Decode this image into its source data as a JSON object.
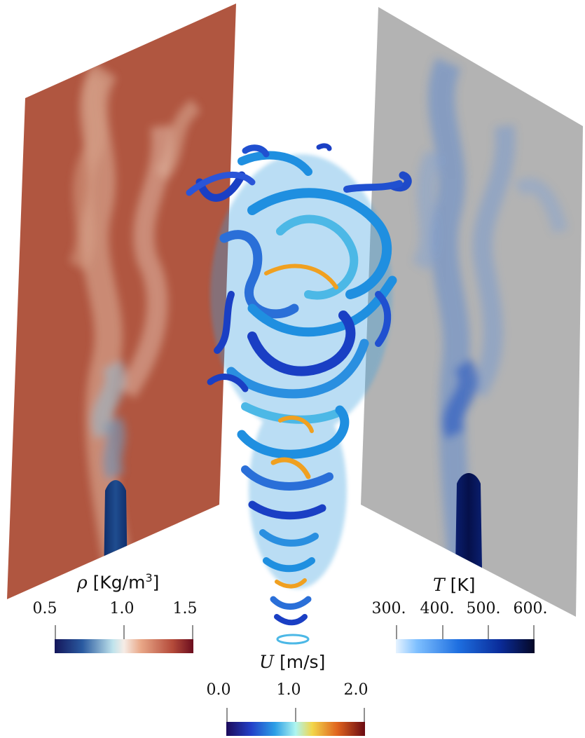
{
  "figure": {
    "density_colorbar": {
      "symbol": "ρ",
      "unit": "[Kg/m",
      "unit_exp": "3",
      "unit_close": "]",
      "ticks": [
        "0.5",
        "1.0",
        "1.5"
      ],
      "range": [
        0.5,
        1.5
      ]
    },
    "temperature_colorbar": {
      "symbol": "T",
      "unit": "[K]",
      "ticks": [
        "300.",
        "400.",
        "500.",
        "600."
      ],
      "range": [
        300,
        600
      ]
    },
    "velocity_colorbar": {
      "symbol": "U",
      "unit": "[m/s]",
      "ticks": [
        "0.0",
        "1.0",
        "2.0"
      ],
      "range": [
        0.0,
        2.0
      ]
    },
    "colors": {
      "density_plane": "#b05640",
      "temperature_plane": "#b3b3b3",
      "vortex_dark": "#1a3fc4",
      "vortex_mid": "#1f8fe0",
      "vortex_light": "#5cd6e6",
      "vortex_hot": "#f0a020"
    }
  }
}
